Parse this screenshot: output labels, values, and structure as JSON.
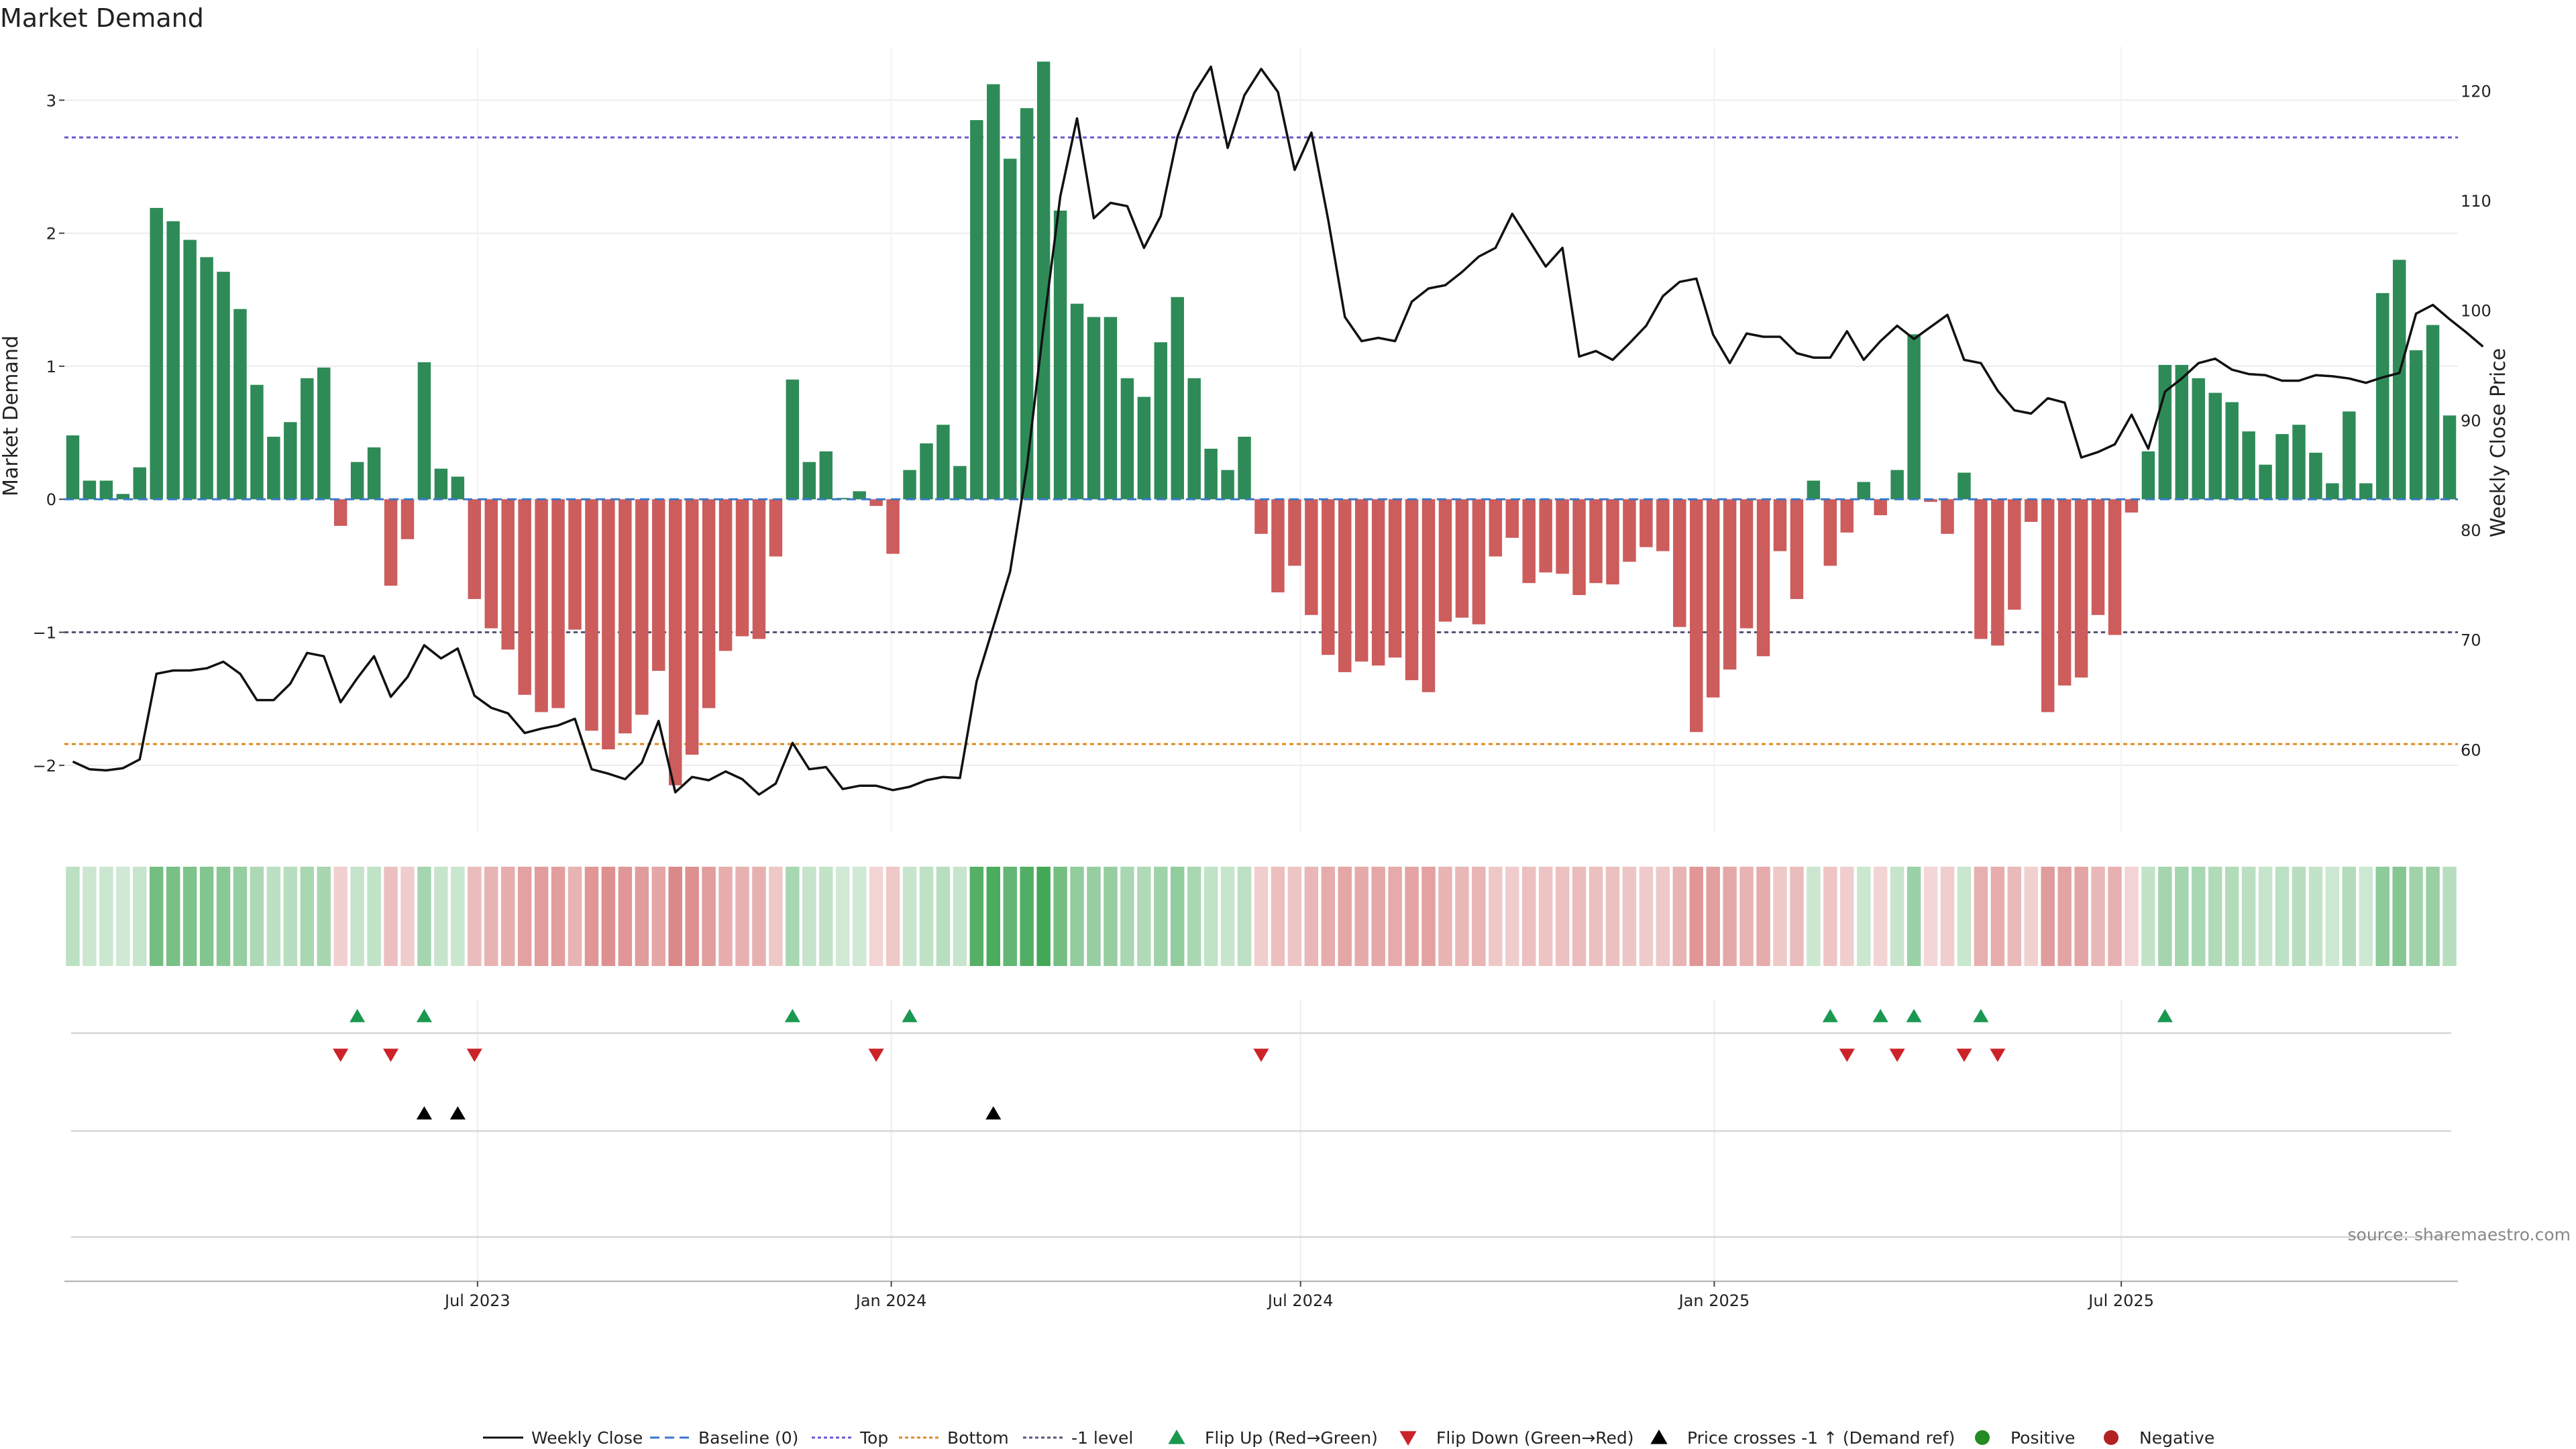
{
  "chart_data": {
    "type": "bar",
    "title": "Market Demand",
    "ylabel": "Market Demand",
    "y2label": "Weekly Close Price",
    "ylim": [
      -2.5,
      3.4
    ],
    "y2lim": [
      52.5,
      124
    ],
    "yticks": [
      -2,
      -1,
      0,
      1,
      2,
      3
    ],
    "y2ticks": [
      60,
      70,
      80,
      90,
      100,
      110,
      120
    ],
    "x_start": "2023-01-02",
    "x_end": "2025-11-24",
    "xticks": [
      {
        "date": "2023-07-01",
        "label": "Jul 2023"
      },
      {
        "date": "2024-01-01",
        "label": "Jan 2024"
      },
      {
        "date": "2024-07-01",
        "label": "Jul 2024"
      },
      {
        "date": "2025-01-01",
        "label": "Jan 2025"
      },
      {
        "date": "2025-07-01",
        "label": "Jul 2025"
      }
    ],
    "reference_lines": {
      "top": 2.72,
      "bottom": -1.84,
      "minus_one": -1,
      "baseline": 0
    },
    "series": [
      {
        "name": "Market Demand",
        "values": [
          0.48,
          0.14,
          0.14,
          0.04,
          0.24,
          2.19,
          2.09,
          1.95,
          1.82,
          1.71,
          1.43,
          0.86,
          0.47,
          0.58,
          0.91,
          0.99,
          -0.2,
          0.28,
          0.39,
          -0.65,
          -0.3,
          1.03,
          0.23,
          0.17,
          -0.75,
          -0.97,
          -1.13,
          -1.47,
          -1.6,
          -1.57,
          -0.98,
          -1.74,
          -1.88,
          -1.76,
          -1.62,
          -1.29,
          -2.15,
          -1.92,
          -1.57,
          -1.14,
          -1.03,
          -1.05,
          -0.43,
          0.9,
          0.28,
          0.36,
          0.01,
          0.06,
          -0.05,
          -0.41,
          0.22,
          0.42,
          0.56,
          0.25,
          2.85,
          3.12,
          2.56,
          2.94,
          3.29,
          2.17,
          1.47,
          1.37,
          1.37,
          0.91,
          0.77,
          1.18,
          1.52,
          0.91,
          0.38,
          0.22,
          0.47,
          -0.26,
          -0.7,
          -0.5,
          -0.87,
          -1.17,
          -1.3,
          -1.22,
          -1.25,
          -1.19,
          -1.36,
          -1.45,
          -0.92,
          -0.89,
          -0.94,
          -0.43,
          -0.29,
          -0.63,
          -0.55,
          -0.56,
          -0.72,
          -0.63,
          -0.64,
          -0.47,
          -0.36,
          -0.39,
          -0.96,
          -1.75,
          -1.49,
          -1.28,
          -0.97,
          -1.18,
          -0.39,
          -0.75,
          0.14,
          -0.5,
          -0.25,
          0.13,
          -0.12,
          0.22,
          1.24,
          -0.02,
          -0.26,
          0.2,
          -1.05,
          -1.1,
          -0.83,
          -0.17,
          -1.6,
          -1.4,
          -1.34,
          -0.87,
          -1.02,
          -0.1,
          0.36,
          1.01,
          1.01,
          0.91,
          0.8,
          0.73,
          0.51,
          0.26,
          0.49,
          0.56,
          0.35,
          0.12,
          0.66,
          0.12,
          1.55,
          1.8,
          1.12,
          1.31,
          0.63
        ]
      },
      {
        "name": "Weekly Close",
        "values": [
          58.9,
          58.2,
          58.1,
          58.3,
          59.1,
          66.9,
          67.2,
          67.2,
          67.4,
          68,
          66.9,
          64.5,
          64.5,
          66,
          68.8,
          68.5,
          64.3,
          66.5,
          68.5,
          64.8,
          66.6,
          69.5,
          68.3,
          69.2,
          64.9,
          63.8,
          63.3,
          61.5,
          61.9,
          62.2,
          62.8,
          58.2,
          57.8,
          57.3,
          58.8,
          62.6,
          56.1,
          57.5,
          57.2,
          58,
          57.3,
          55.9,
          56.9,
          60.6,
          58.2,
          58.4,
          56.4,
          56.7,
          56.7,
          56.3,
          56.6,
          57.2,
          57.5,
          57.4,
          66.2,
          71.2,
          76.2,
          85.7,
          98.5,
          110.4,
          117.5,
          108.4,
          109.8,
          109.5,
          105.7,
          108.6,
          115.8,
          119.8,
          122.2,
          114.8,
          119.6,
          122,
          119.9,
          112.8,
          116.2,
          108.3,
          99.4,
          97.2,
          97.5,
          97.2,
          100.8,
          102,
          102.3,
          103.5,
          104.9,
          105.7,
          108.8,
          106.4,
          104,
          105.7,
          95.8,
          96.3,
          95.5,
          97,
          98.6,
          101.3,
          102.6,
          102.9,
          97.8,
          95.2,
          97.9,
          97.6,
          97.6,
          96.1,
          95.7,
          95.7,
          98.1,
          95.5,
          97.2,
          98.6,
          97.4,
          98.5,
          99.6,
          95.5,
          95.2,
          92.7,
          90.9,
          90.6,
          92,
          91.6,
          86.6,
          87.1,
          87.8,
          90.5,
          87.4,
          92.6,
          93.8,
          95.2,
          95.6,
          94.6,
          94.2,
          94.1,
          93.6,
          93.6,
          94.1,
          94,
          93.8,
          93.4,
          93.9,
          94.3,
          99.7,
          100.5,
          99.2,
          98,
          96.7
        ]
      }
    ],
    "flip_up_weeks": [
      17,
      21,
      43,
      50,
      105,
      108,
      110,
      114,
      125
    ],
    "flip_down_weeks": [
      16,
      19,
      24,
      48,
      71,
      106,
      109,
      113,
      115
    ],
    "price_cross_weeks": [
      21,
      23,
      55
    ],
    "legend": [
      {
        "label": "Weekly Close",
        "symbol": "line"
      },
      {
        "label": "Baseline (0)",
        "symbol": "dash-blue"
      },
      {
        "label": "Top",
        "symbol": "dot-purple"
      },
      {
        "label": "Bottom",
        "symbol": "dot-orange"
      },
      {
        "label": "-1 level",
        "symbol": "dot-gray"
      },
      {
        "label": "Flip Up (Red→Green)",
        "symbol": "tri-up-green"
      },
      {
        "label": "Flip Down (Green→Red)",
        "symbol": "tri-down-red"
      },
      {
        "label": "Price crosses -1 ↑ (Demand ref)",
        "symbol": "tri-up-black"
      },
      {
        "label": "Positive",
        "symbol": "dot-green"
      },
      {
        "label": "Negative",
        "symbol": "dot-red"
      }
    ],
    "legend_position": "bottom-center",
    "grid": true
  },
  "source": "source: sharemaestro.com",
  "colors": {
    "positive": "#2e8b57",
    "negative": "#cd5c5c",
    "price": "#111111",
    "top": "#6a5acd",
    "bottom": "#e08a1e",
    "minus_one": "#555577",
    "baseline": "#3a78c8",
    "flip_up": "#1a9850",
    "flip_down": "#cc2229",
    "cross": "#000000",
    "legend_positive": "#228b22",
    "legend_negative": "#b22222"
  }
}
